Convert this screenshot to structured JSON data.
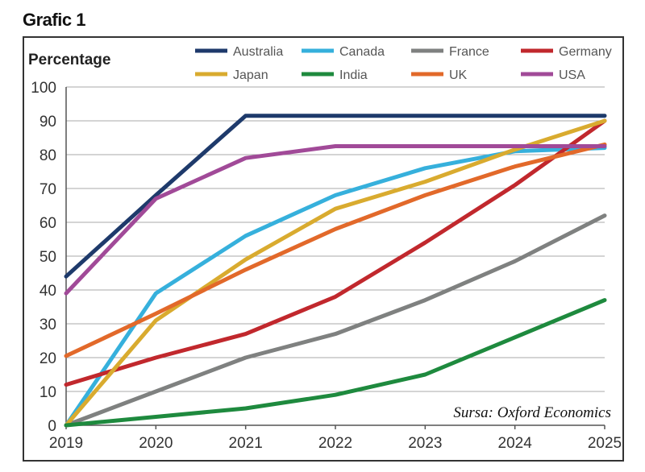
{
  "figure_label": "Grafic 1",
  "chart_data": {
    "type": "line",
    "x": [
      2019,
      2020,
      2021,
      2022,
      2023,
      2024,
      2025
    ],
    "x_tick_labels": [
      "2019",
      "2020",
      "2021",
      "2022",
      "2023",
      "2024",
      "2025"
    ],
    "y_tick_labels": [
      "0",
      "10",
      "20",
      "30",
      "40",
      "50",
      "60",
      "70",
      "80",
      "90",
      "100"
    ],
    "ylabel": "Percentage",
    "ylim": [
      0,
      100
    ],
    "grid": true,
    "legend_position": "top",
    "source": "Sursa: Oxford Economics",
    "series": [
      {
        "name": "Australia",
        "color": "#1e3a6b",
        "values": [
          44,
          68,
          91.5,
          91.5,
          91.5,
          91.5,
          91.5
        ]
      },
      {
        "name": "Canada",
        "color": "#36b0dc",
        "values": [
          0,
          39,
          56,
          68,
          76,
          81,
          82
        ]
      },
      {
        "name": "France",
        "color": "#7f8180",
        "values": [
          0,
          10,
          20,
          27,
          37,
          48.5,
          62
        ]
      },
      {
        "name": "Germany",
        "color": "#c1282d",
        "values": [
          12,
          20,
          27,
          38,
          54,
          71,
          90
        ]
      },
      {
        "name": "Japan",
        "color": "#d9ab2f",
        "values": [
          0,
          31,
          49,
          64,
          72,
          81.5,
          90
        ]
      },
      {
        "name": "India",
        "color": "#1e8a3e",
        "values": [
          0,
          2.5,
          5,
          9,
          15,
          26,
          37
        ]
      },
      {
        "name": "UK",
        "color": "#e2692a",
        "values": [
          20.5,
          33,
          46,
          58,
          68,
          76.5,
          83
        ]
      },
      {
        "name": "USA",
        "color": "#a14a98",
        "values": [
          39,
          67,
          79,
          82.5,
          82.5,
          82.5,
          82.5
        ]
      }
    ]
  }
}
